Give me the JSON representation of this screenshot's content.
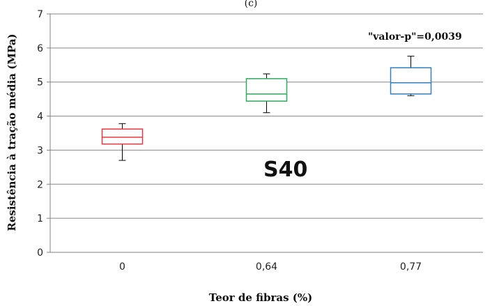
{
  "chart_data": {
    "type": "box",
    "title": "(c)",
    "xlabel": "Teor de fibras (%)",
    "ylabel": "Resistência à tração média (MPa)",
    "ylim": [
      0,
      7
    ],
    "yticks": [
      "0",
      "1",
      "2",
      "3",
      "4",
      "5",
      "6",
      "7"
    ],
    "categories": [
      "0",
      "0,64",
      "0,77"
    ],
    "boxes": [
      {
        "category": "0",
        "min": 2.7,
        "q1": 3.18,
        "median": 3.38,
        "q3": 3.62,
        "max": 3.78,
        "color": "#e8383d"
      },
      {
        "category": "0,64",
        "min": 4.1,
        "q1": 4.44,
        "median": 4.65,
        "q3": 5.1,
        "max": 5.24,
        "color": "#2eaa5c"
      },
      {
        "category": "0,77",
        "min": 4.6,
        "q1": 4.65,
        "median": 4.98,
        "q3": 5.42,
        "max": 5.76,
        "color": "#2f7fc1"
      }
    ],
    "annotations": {
      "p_value": "\"valor-p\"=0,0039",
      "series_label": "S40"
    },
    "grid": "horizontal"
  }
}
